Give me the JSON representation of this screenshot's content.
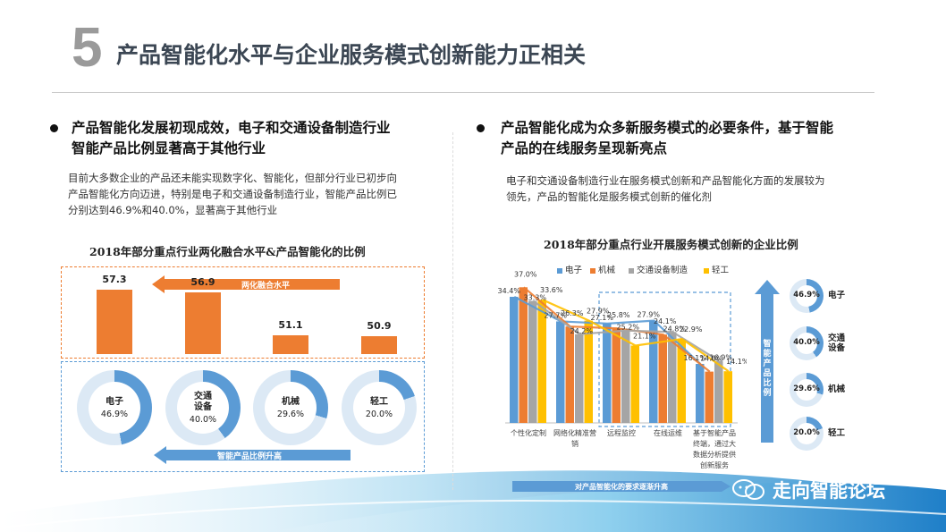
{
  "header": {
    "number": "5",
    "title": "产品智能化水平与企业服务模式创新能力正相关"
  },
  "left": {
    "heading_line1": "产品智能化发展初现成效，电子和交通设备制造行业",
    "heading_line2": "智能产品比例显著高于其他行业",
    "para_line1": "目前大多数企业的产品还未能实现数字化、智能化，但部分行业已初步向",
    "para_line2": "产品智能化方向迈进，特别是电子和交通设备制造行业，智能产品比例已",
    "para_line3": "分别达到46.9%和40.0%，显著高于其他行业"
  },
  "right": {
    "heading_line1": "产品智能化成为众多新服务模式的必要条件，基于智能",
    "heading_line2": "产品的在线服务呈现新亮点",
    "para_line1": "电子和交通设备制造行业在服务模式创新和产品智能化方面的发展较为",
    "para_line2": "领先，产品的智能化是服务模式创新的催化剂"
  },
  "colors": {
    "orange": "#ed7d31",
    "blue": "#5b9bd5",
    "gray": "#a5a5a5",
    "yellow": "#ffc000",
    "title_gray": "#3b4653"
  },
  "chart_data": [
    {
      "type": "bar",
      "title": "2018年部分重点行业两化融合水平&产品智能化的比例",
      "categories": [
        "电子",
        "交通设备",
        "机械",
        "轻工"
      ],
      "category_labels": [
        "电子",
        "交通\n设备",
        "机械",
        "轻工"
      ],
      "series": [
        {
          "name": "两化融合水平",
          "values": [
            57.3,
            56.9,
            51.1,
            50.9
          ],
          "labels": [
            "57.3",
            "56.9",
            "51.1",
            "50.9"
          ]
        },
        {
          "name": "智能产品比例升高",
          "values": [
            46.9,
            40.0,
            29.6,
            20.0
          ],
          "labels": [
            "46.9%",
            "40.0%",
            "29.6%",
            "20.0%"
          ]
        }
      ],
      "annotations": [
        "两化融合水平",
        "智能产品比例升高"
      ]
    },
    {
      "type": "bar",
      "title": "2018年部分重点行业开展服务模式创新的企业比例",
      "categories": [
        "个性化定制",
        "网络化精准营销",
        "远程监控",
        "在线运维",
        "基于智能产品终端，通过大数据分析提供创新服务"
      ],
      "category_lines": [
        [
          "个性化定制"
        ],
        [
          "网络化精准营",
          "销"
        ],
        [
          "远程监控"
        ],
        [
          "在线运维"
        ],
        [
          "基于智能产品",
          "终端，通过大",
          "数据分析提供",
          "创新服务"
        ]
      ],
      "series": [
        {
          "name": "电子",
          "values": [
            34.4,
            27.7,
            27.1,
            27.9,
            16.1
          ],
          "labels": [
            "34.4%",
            "27.7%",
            "27.1%",
            "27.9%",
            "16.1%"
          ]
        },
        {
          "name": "机械",
          "values": [
            37.0,
            26.3,
            25.8,
            24.1,
            14.0
          ],
          "labels": [
            "37.0%",
            "26.3%",
            "25.8%",
            "24.1%",
            "14.0%"
          ]
        },
        {
          "name": "交通设备制造",
          "values": [
            33.3,
            24.2,
            25.2,
            24.8,
            16.9
          ],
          "labels": [
            "33.3%",
            "24.2%",
            "25.2%",
            "24.8%",
            "16.9%"
          ]
        },
        {
          "name": "轻工",
          "values": [
            33.6,
            27.9,
            21.1,
            22.9,
            14.1
          ],
          "labels": [
            "33.6%",
            "27.9%",
            "21.1%",
            "22.9%",
            "14.1%"
          ]
        }
      ],
      "ylim": [
        0,
        40
      ],
      "side_axis_label": "智能产品比例",
      "bottom_label": "对产品智能化的要求逐渐升高",
      "side_categories": [
        {
          "label": "电子",
          "value": 46.9,
          "text": "46.9%"
        },
        {
          "label": "交通设备",
          "value": 40.0,
          "text": "40.0%"
        },
        {
          "label": "机械",
          "value": 29.6,
          "text": "29.6%"
        },
        {
          "label": "轻工",
          "value": 20.0,
          "text": "20.0%"
        }
      ]
    }
  ],
  "watermark": {
    "text": "走向智能论坛",
    "icon": "wechat-icon"
  }
}
